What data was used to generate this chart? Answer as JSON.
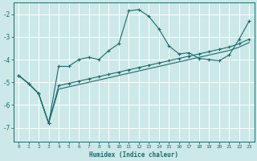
{
  "xlabel": "Humidex (Indice chaleur)",
  "bg_color": "#cce8e8",
  "line_color": "#1a6b6b",
  "grid_color": "#ffffff",
  "xlim": [
    -0.5,
    23.5
  ],
  "ylim": [
    -7.6,
    -1.5
  ],
  "yticks": [
    -7,
    -6,
    -5,
    -4,
    -3,
    -2
  ],
  "xticks": [
    0,
    1,
    2,
    3,
    4,
    5,
    6,
    7,
    8,
    9,
    10,
    11,
    12,
    13,
    14,
    15,
    16,
    17,
    18,
    19,
    20,
    21,
    22,
    23
  ],
  "series1_x": [
    0,
    1,
    2,
    3,
    4,
    5,
    6,
    7,
    8,
    9,
    10,
    11,
    12,
    13,
    14,
    15,
    16,
    17,
    18,
    19,
    20,
    21,
    22,
    23
  ],
  "series1_y": [
    -4.7,
    -5.05,
    -5.5,
    -6.8,
    -4.3,
    -4.3,
    -4.0,
    -3.9,
    -4.0,
    -3.6,
    -3.3,
    -1.85,
    -1.8,
    -2.1,
    -2.65,
    -3.4,
    -3.75,
    -3.7,
    -3.95,
    -4.0,
    -4.05,
    -3.8,
    -3.1,
    -2.3
  ],
  "series2_x": [
    0,
    1,
    2,
    3,
    4,
    5,
    6,
    7,
    8,
    9,
    10,
    11,
    12,
    13,
    14,
    15,
    16,
    17,
    18,
    19,
    20,
    21,
    22,
    23
  ],
  "series2_y": [
    -4.7,
    -5.05,
    -5.5,
    -6.8,
    -5.15,
    -5.05,
    -4.95,
    -4.85,
    -4.75,
    -4.65,
    -4.55,
    -4.45,
    -4.35,
    -4.25,
    -4.15,
    -4.05,
    -3.95,
    -3.85,
    -3.75,
    -3.65,
    -3.55,
    -3.45,
    -3.3,
    -3.1
  ],
  "series3_x": [
    0,
    1,
    2,
    3,
    4,
    5,
    6,
    7,
    8,
    9,
    10,
    11,
    12,
    13,
    14,
    15,
    16,
    17,
    18,
    19,
    20,
    21,
    22,
    23
  ],
  "series3_y": [
    -4.7,
    -5.05,
    -5.5,
    -6.8,
    -5.3,
    -5.2,
    -5.1,
    -5.0,
    -4.9,
    -4.8,
    -4.7,
    -4.6,
    -4.5,
    -4.4,
    -4.3,
    -4.2,
    -4.1,
    -4.0,
    -3.9,
    -3.8,
    -3.7,
    -3.6,
    -3.45,
    -3.25
  ]
}
